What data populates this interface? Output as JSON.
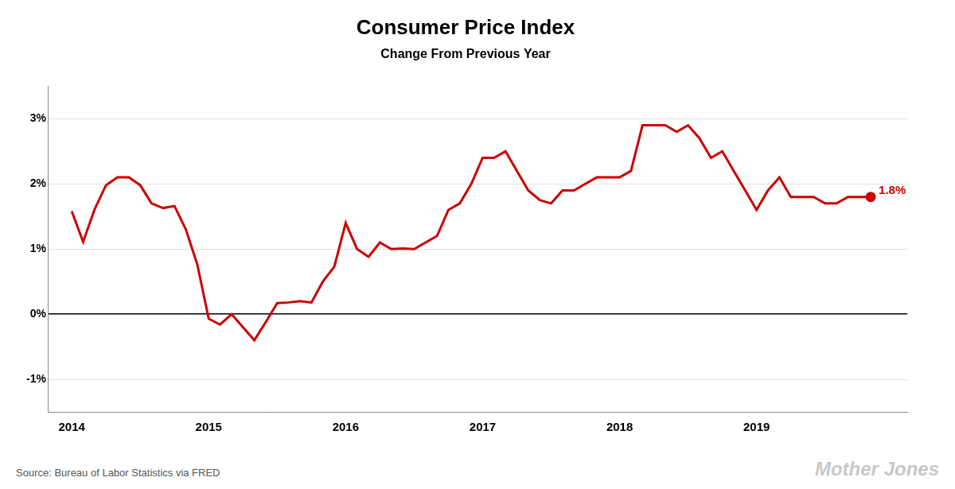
{
  "chart_data": {
    "type": "line",
    "title": "Consumer Price Index",
    "subtitle": "Change From Previous Year",
    "source": "Source:  Bureau of Labor Statistics via FRED",
    "watermark": "Mother Jones",
    "color": "#CC0000",
    "x": [
      2014.0,
      2014.083,
      2014.167,
      2014.25,
      2014.333,
      2014.417,
      2014.5,
      2014.583,
      2014.667,
      2014.75,
      2014.833,
      2014.917,
      2015.0,
      2015.083,
      2015.167,
      2015.25,
      2015.333,
      2015.417,
      2015.5,
      2015.583,
      2015.667,
      2015.75,
      2015.833,
      2015.917,
      2016.0,
      2016.083,
      2016.167,
      2016.25,
      2016.333,
      2016.417,
      2016.5,
      2016.583,
      2016.667,
      2016.75,
      2016.833,
      2016.917,
      2017.0,
      2017.083,
      2017.167,
      2017.25,
      2017.333,
      2017.417,
      2017.5,
      2017.583,
      2017.667,
      2017.75,
      2017.833,
      2017.917,
      2018.0,
      2018.083,
      2018.167,
      2018.25,
      2018.333,
      2018.417,
      2018.5,
      2018.583,
      2018.667,
      2018.75,
      2018.833,
      2018.917,
      2019.0,
      2019.083,
      2019.167,
      2019.25,
      2019.333,
      2019.417,
      2019.5,
      2019.583,
      2019.667,
      2019.75,
      2019.833
    ],
    "values": [
      0.0158,
      0.0111,
      0.0161,
      0.0198,
      0.021,
      0.021,
      0.0198,
      0.017,
      0.0163,
      0.0166,
      0.013,
      0.0076,
      -0.0007,
      -0.0016,
      0.0,
      -0.002,
      -0.004,
      -0.0012,
      0.0017,
      0.0018,
      0.002,
      0.0018,
      0.005,
      0.0073,
      0.014,
      0.01,
      0.0088,
      0.011,
      0.01,
      0.0101,
      0.01,
      0.011,
      0.012,
      0.016,
      0.017,
      0.02,
      0.024,
      0.024,
      0.025,
      0.022,
      0.019,
      0.0175,
      0.017,
      0.019,
      0.019,
      0.02,
      0.021,
      0.021,
      0.021,
      0.022,
      0.029,
      0.029,
      0.029,
      0.028,
      0.029,
      0.027,
      0.024,
      0.025,
      0.022,
      0.019,
      0.016,
      0.019,
      0.021,
      0.018,
      0.018,
      0.018,
      0.017,
      0.017,
      0.018,
      0.018,
      0.018
    ],
    "annotations": [
      {
        "text": "1.8%",
        "x": 2019.833,
        "y": 0.018
      }
    ],
    "xlim": [
      2013.83,
      2020.1
    ],
    "xticks": [
      2014,
      2015,
      2016,
      2017,
      2018,
      2019
    ],
    "ylim": [
      -0.015,
      0.035
    ],
    "yticks": [
      {
        "value": -0.01,
        "label": "-1%"
      },
      {
        "value": 0.0,
        "label": "0%"
      },
      {
        "value": 0.01,
        "label": "1%"
      },
      {
        "value": 0.02,
        "label": "2%"
      },
      {
        "value": 0.03,
        "label": "3%"
      }
    ],
    "grid": true
  }
}
